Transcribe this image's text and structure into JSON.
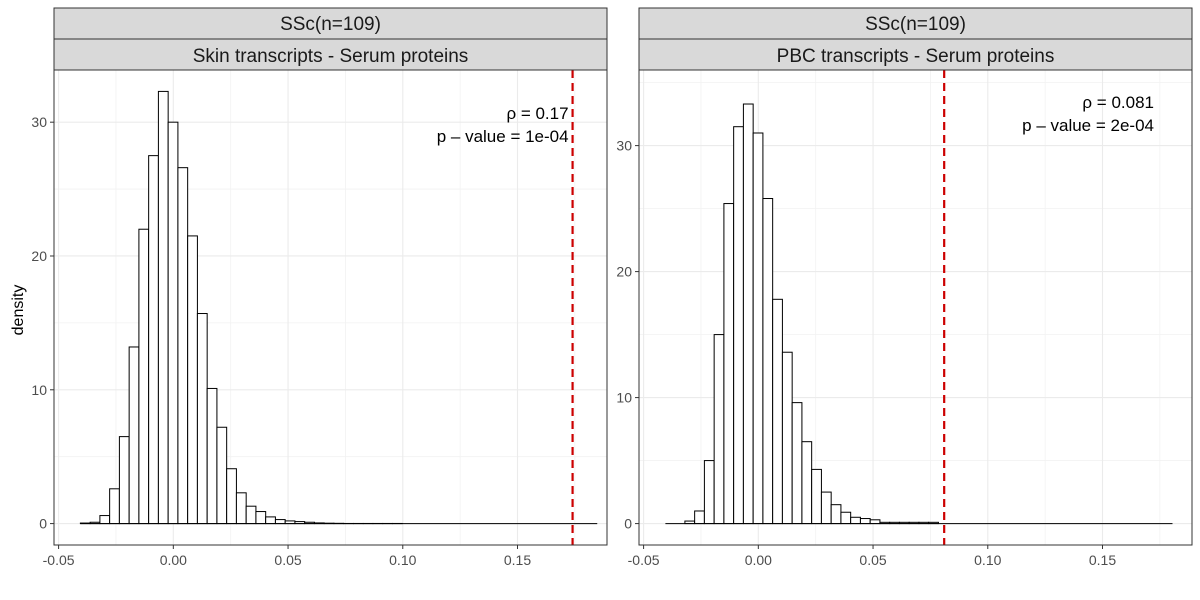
{
  "chart_data": {
    "type": "histogram",
    "ylabel": "density",
    "xlabel": "",
    "grid": true,
    "bar_fill": "#ffffff",
    "bar_stroke": "#000000",
    "ref_line_color": "#cc0000",
    "strip_fill": "#d9d9d9",
    "x_ticks": [
      -0.05,
      0,
      0.05,
      0.1,
      0.15
    ],
    "x_tick_labels": [
      "-0.05",
      "0.00",
      "0.05",
      "0.10",
      "0.15"
    ],
    "y_ticks": [
      0,
      10,
      20,
      30
    ],
    "y_tick_labels": [
      "0",
      "10",
      "20",
      "30"
    ],
    "panels": [
      {
        "strip_top": "SSc(n=109)",
        "strip_bottom": "Skin transcripts - Serum proteins",
        "xlim": [
          -0.052,
          0.189
        ],
        "ylim": [
          -1.6,
          33.9
        ],
        "bin_start": -0.0405,
        "bin_width": 0.00425,
        "densities": [
          0.04,
          0.1,
          0.6,
          2.6,
          6.5,
          13.2,
          22.0,
          27.5,
          32.3,
          30.0,
          26.6,
          21.5,
          15.7,
          10.1,
          7.2,
          4.1,
          2.3,
          1.3,
          0.9,
          0.5,
          0.3,
          0.2,
          0.15,
          0.1,
          0.05,
          0.03,
          0.02,
          0.01,
          0.01,
          0.01,
          0.01,
          0.01,
          0.01,
          0.0,
          0.0,
          0.0,
          0.0,
          0.0,
          0.0,
          0.0,
          0.0,
          0.0,
          0.0,
          0.0,
          0.0,
          0.0,
          0.0,
          0.0,
          0.0,
          0.0,
          0.0,
          0.0,
          0.0
        ],
        "observed": 0.174,
        "rho_label": "ρ = 0.17",
        "p_label": "p – value = 1e-04"
      },
      {
        "strip_top": "SSc(n=109)",
        "strip_bottom": "PBC transcripts - Serum proteins",
        "xlim": [
          -0.052,
          0.189
        ],
        "ylim": [
          -1.7,
          36.0
        ],
        "bin_start": -0.0405,
        "bin_width": 0.00425,
        "densities": [
          0.0,
          0.0,
          0.2,
          1.0,
          5.0,
          15.0,
          25.4,
          31.5,
          33.3,
          31.0,
          25.8,
          17.8,
          13.6,
          9.6,
          6.5,
          4.3,
          2.5,
          1.5,
          0.9,
          0.5,
          0.4,
          0.3,
          0.1,
          0.1,
          0.1,
          0.1,
          0.1,
          0.1,
          0.0,
          0.0,
          0.0,
          0.0,
          0.0,
          0.0,
          0.0,
          0.0,
          0.0,
          0.0,
          0.0,
          0.0,
          0.0,
          0.0,
          0.0,
          0.0,
          0.0,
          0.0,
          0.0,
          0.0,
          0.0,
          0.0,
          0.0,
          0.0
        ],
        "observed": 0.081,
        "rho_label": "ρ = 0.081",
        "p_label": "p – value = 2e-04"
      }
    ]
  }
}
